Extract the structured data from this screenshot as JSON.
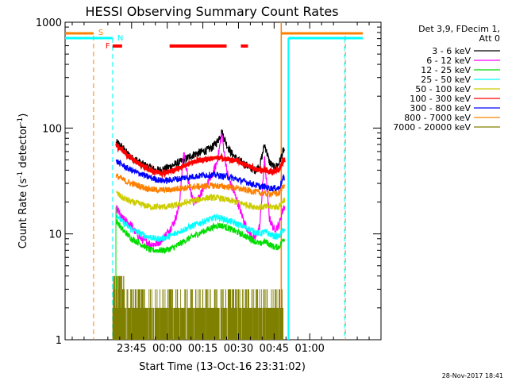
{
  "chart_data": {
    "type": "line",
    "title": "HESSI Observing Summary Count Rates",
    "xlabel": "Start Time (13-Oct-16 23:31:02)",
    "ylabel_main": "Count Rate (s",
    "ylabel_sup1": "-1",
    "ylabel_mid": " detector",
    "ylabel_sup2": "-1",
    "ylabel_end": ")",
    "yscale": "log",
    "ylim": [
      1,
      1000
    ],
    "xlim_minutes": [
      -28,
      105
    ],
    "x_ticks": [
      {
        "label": "23:45",
        "minutes": 0
      },
      {
        "label": "00:00",
        "minutes": 15
      },
      {
        "label": "00:15",
        "minutes": 30
      },
      {
        "label": "00:30",
        "minutes": 45
      },
      {
        "label": "00:45",
        "minutes": 60
      },
      {
        "label": "01:00",
        "minutes": 75
      }
    ],
    "y_ticks": [
      {
        "label": "1",
        "value": 1
      },
      {
        "label": "10",
        "value": 10
      },
      {
        "label": "100",
        "value": 100
      },
      {
        "label": "1000",
        "value": 1000
      }
    ],
    "legend": {
      "header1": "Det 3,9, FDecim 1,",
      "header2": "Att 0",
      "placement": "right"
    },
    "series": [
      {
        "name": "3 - 6 keV",
        "color": "#000000",
        "t": [
          -6,
          -4,
          -2,
          0,
          2,
          4,
          6,
          8,
          10,
          12,
          14,
          16,
          18,
          20,
          22,
          24,
          26,
          28,
          30,
          32,
          34,
          36,
          38,
          40,
          42,
          44,
          46,
          48,
          50,
          52,
          54,
          56,
          58,
          60,
          62,
          64
        ],
        "v": [
          72,
          66,
          58,
          52,
          50,
          46,
          44,
          42,
          40,
          40,
          41,
          43,
          45,
          47,
          50,
          53,
          56,
          58,
          60,
          62,
          66,
          74,
          92,
          70,
          58,
          52,
          48,
          45,
          42,
          40,
          44,
          70,
          48,
          42,
          46,
          62
        ]
      },
      {
        "name": "6 - 12 keV",
        "color": "#ff00ff",
        "t": [
          -6,
          -4,
          -2,
          0,
          2,
          4,
          6,
          8,
          10,
          12,
          14,
          16,
          18,
          20,
          22,
          24,
          26,
          28,
          30,
          32,
          34,
          36,
          38,
          40,
          42,
          44,
          46,
          48,
          50,
          52,
          54,
          56,
          58,
          60,
          62,
          64
        ],
        "v": [
          17,
          14,
          13,
          12,
          10,
          9,
          8.5,
          8,
          8,
          8.5,
          9.5,
          11,
          13,
          18,
          60,
          30,
          20,
          22,
          26,
          30,
          36,
          48,
          88,
          40,
          28,
          22,
          16,
          12,
          10,
          9,
          12,
          52,
          14,
          11,
          12,
          18
        ]
      },
      {
        "name": "12 - 25 keV",
        "color": "#00dd00",
        "t": [
          -6,
          -4,
          -2,
          0,
          2,
          4,
          6,
          8,
          10,
          12,
          14,
          16,
          18,
          20,
          22,
          24,
          26,
          28,
          30,
          32,
          34,
          36,
          38,
          40,
          42,
          44,
          46,
          48,
          50,
          52,
          54,
          56,
          58,
          60,
          62,
          64
        ],
        "v": [
          13,
          11,
          10,
          9,
          8.5,
          8,
          7.5,
          7,
          7,
          7,
          7,
          7.2,
          7.5,
          8,
          8.5,
          9,
          9.5,
          10,
          10.5,
          11,
          11.5,
          12,
          12,
          11.5,
          11,
          10.5,
          10,
          9.5,
          9,
          8.5,
          8,
          8.5,
          8,
          7.5,
          7.5,
          9
        ]
      },
      {
        "name": "25 - 50 keV",
        "color": "#00ffff",
        "t": [
          -6,
          -4,
          -2,
          0,
          2,
          4,
          6,
          8,
          10,
          12,
          14,
          16,
          18,
          20,
          22,
          24,
          26,
          28,
          30,
          32,
          34,
          36,
          38,
          40,
          42,
          44,
          46,
          48,
          50,
          52,
          54,
          56,
          58,
          60,
          62,
          64
        ],
        "v": [
          15,
          13,
          12,
          11,
          10.5,
          10,
          9.5,
          9.3,
          9,
          9,
          9.2,
          9.5,
          10,
          10.5,
          11,
          11.5,
          12,
          12.5,
          13,
          13.5,
          14,
          14.5,
          14,
          13.5,
          13,
          12.5,
          12,
          11.5,
          11,
          10.5,
          10,
          10.5,
          10,
          9.5,
          9.5,
          11
        ]
      },
      {
        "name": "50 - 100 keV",
        "color": "#cccc00",
        "t": [
          -6,
          -4,
          -2,
          0,
          2,
          4,
          6,
          8,
          10,
          12,
          14,
          16,
          18,
          20,
          22,
          24,
          26,
          28,
          30,
          32,
          34,
          36,
          38,
          40,
          42,
          44,
          46,
          48,
          50,
          52,
          54,
          56,
          58,
          60,
          62,
          64
        ],
        "v": [
          24,
          22,
          21,
          20,
          19.5,
          19,
          18.5,
          18,
          18,
          18,
          18,
          18.2,
          18.5,
          19,
          19.5,
          20,
          20.5,
          21,
          21.5,
          22,
          22,
          22,
          21.5,
          21,
          20.5,
          20,
          19.5,
          19,
          18.5,
          18,
          18,
          18,
          18,
          18,
          18,
          21
        ]
      },
      {
        "name": "100 - 300 keV",
        "color": "#ff0000",
        "t": [
          -6,
          -4,
          -2,
          0,
          2,
          4,
          6,
          8,
          10,
          12,
          14,
          16,
          18,
          20,
          22,
          24,
          26,
          28,
          30,
          32,
          34,
          36,
          38,
          40,
          42,
          44,
          46,
          48,
          50,
          52,
          54,
          56,
          58,
          60,
          62,
          64
        ],
        "v": [
          68,
          62,
          56,
          52,
          48,
          45,
          42,
          40,
          39,
          38,
          38,
          39,
          40,
          42,
          44,
          46,
          48,
          49,
          50,
          51,
          52,
          52,
          52,
          51,
          50,
          49,
          47,
          45,
          43,
          41,
          40,
          40,
          39,
          39,
          40,
          50
        ]
      },
      {
        "name": "300 - 800 keV",
        "color": "#0000ff",
        "t": [
          -6,
          -4,
          -2,
          0,
          2,
          4,
          6,
          8,
          10,
          12,
          14,
          16,
          18,
          20,
          22,
          24,
          26,
          28,
          30,
          32,
          34,
          36,
          38,
          40,
          42,
          44,
          46,
          48,
          50,
          52,
          54,
          56,
          58,
          60,
          62,
          64
        ],
        "v": [
          48,
          45,
          42,
          40,
          38,
          37,
          35,
          34,
          33,
          32,
          32,
          32,
          33,
          33,
          34,
          34,
          35,
          35,
          36,
          36,
          36,
          36,
          35,
          35,
          34,
          33,
          32,
          31,
          30,
          29,
          28,
          28,
          27,
          27,
          27,
          34
        ]
      },
      {
        "name": "800 - 7000 keV",
        "color": "#ff8000",
        "t": [
          -6,
          -4,
          -2,
          0,
          2,
          4,
          6,
          8,
          10,
          12,
          14,
          16,
          18,
          20,
          22,
          24,
          26,
          28,
          30,
          32,
          34,
          36,
          38,
          40,
          42,
          44,
          46,
          48,
          50,
          52,
          54,
          56,
          58,
          60,
          62,
          64
        ],
        "v": [
          35,
          33,
          31,
          30,
          29,
          28,
          27,
          26.5,
          26,
          26,
          26,
          26,
          26.5,
          27,
          27,
          27.5,
          28,
          28,
          28,
          28.5,
          28.5,
          28.5,
          28,
          28,
          27.5,
          27,
          26.5,
          26,
          25.5,
          25,
          24.5,
          24,
          24,
          24,
          24,
          29
        ]
      },
      {
        "name": "7000 - 20000 keV",
        "color": "#808000",
        "noise_range": [
          1,
          4
        ]
      }
    ],
    "annotations": [
      {
        "label": "S",
        "color": "#ff8000",
        "x_minutes": -16
      },
      {
        "label": "N",
        "color": "#00ffff",
        "x_minutes": -8
      },
      {
        "label": "F",
        "color": "#ff0000"
      }
    ],
    "flare_bars_minutes": [
      [
        -8,
        -4
      ],
      [
        16,
        40
      ],
      [
        46,
        49
      ]
    ],
    "saa_ends_minutes": [
      63,
      90
    ],
    "night_start_minutes": [
      66,
      90
    ]
  },
  "footer": {
    "timestamp": "28-Nov-2017 18:41"
  }
}
